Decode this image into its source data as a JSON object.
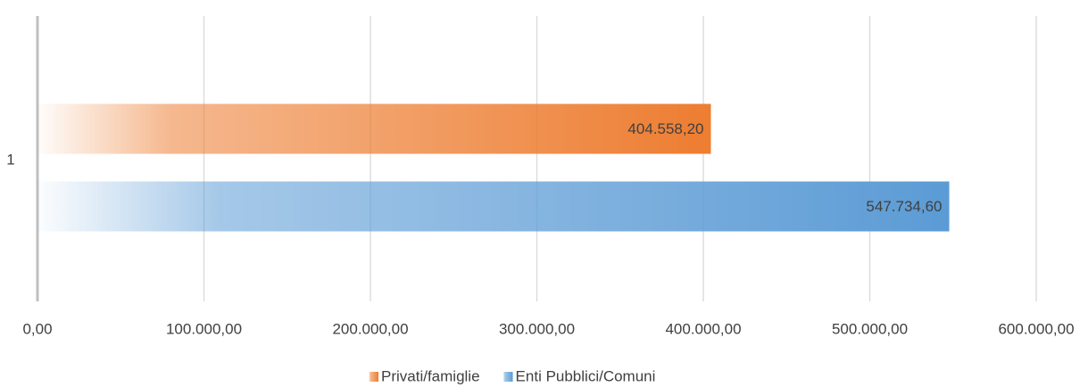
{
  "chart_data": {
    "type": "bar",
    "orientation": "horizontal",
    "categories": [
      "1"
    ],
    "series": [
      {
        "name": "Privati/famiglie",
        "color": "#ed7d31",
        "values": [
          404558.2
        ],
        "value_labels": [
          "404.558,20"
        ]
      },
      {
        "name": "Enti Pubblici/Comuni",
        "color": "#5b9bd5",
        "values": [
          547734.6
        ],
        "value_labels": [
          "547.734,60"
        ]
      }
    ],
    "xlim": [
      0,
      600000
    ],
    "xticks": [
      {
        "value": 0,
        "label": "0,00"
      },
      {
        "value": 100000,
        "label": "100.000,00"
      },
      {
        "value": 200000,
        "label": "200.000,00"
      },
      {
        "value": 300000,
        "label": "300.000,00"
      },
      {
        "value": 400000,
        "label": "400.000,00"
      },
      {
        "value": 500000,
        "label": "500.000,00"
      },
      {
        "value": 600000,
        "label": "600.000,00"
      }
    ],
    "grid": true,
    "legend": "bottom"
  }
}
